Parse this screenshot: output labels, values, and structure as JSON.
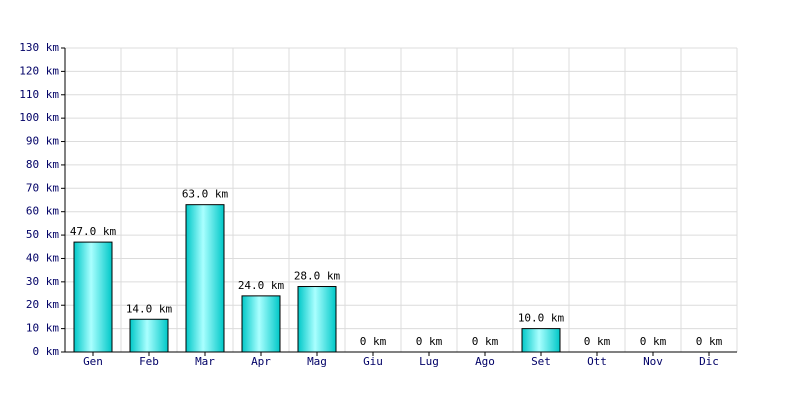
{
  "chart_data": {
    "type": "bar",
    "categories": [
      "Gen",
      "Feb",
      "Mar",
      "Apr",
      "Mag",
      "Giu",
      "Lug",
      "Ago",
      "Set",
      "Ott",
      "Nov",
      "Dic"
    ],
    "values": [
      47,
      14,
      63,
      24,
      28,
      0,
      0,
      0,
      10,
      0,
      0,
      0
    ],
    "value_labels": [
      "47.0 km",
      "14.0 km",
      "63.0 km",
      "24.0 km",
      "28.0 km",
      "0 km",
      "0 km",
      "0 km",
      "10.0 km",
      "0 km",
      "0 km",
      "0 km"
    ],
    "color": "#00c8c8",
    "ylim": [
      0,
      130
    ],
    "yticks": [
      {
        "value": 0,
        "label": "0 km"
      },
      {
        "value": 10,
        "label": "10 km"
      },
      {
        "value": 20,
        "label": "20 km"
      },
      {
        "value": 30,
        "label": "30 km"
      },
      {
        "value": 40,
        "label": "40 km"
      },
      {
        "value": 50,
        "label": "50 km"
      },
      {
        "value": 60,
        "label": "60 km"
      },
      {
        "value": 70,
        "label": "70 km"
      },
      {
        "value": 80,
        "label": "80 km"
      },
      {
        "value": 90,
        "label": "90 km"
      },
      {
        "value": 100,
        "label": "100 km"
      },
      {
        "value": 110,
        "label": "110 km"
      },
      {
        "value": 120,
        "label": "120 km"
      },
      {
        "value": 130,
        "label": "130 km"
      }
    ],
    "grid": true
  }
}
